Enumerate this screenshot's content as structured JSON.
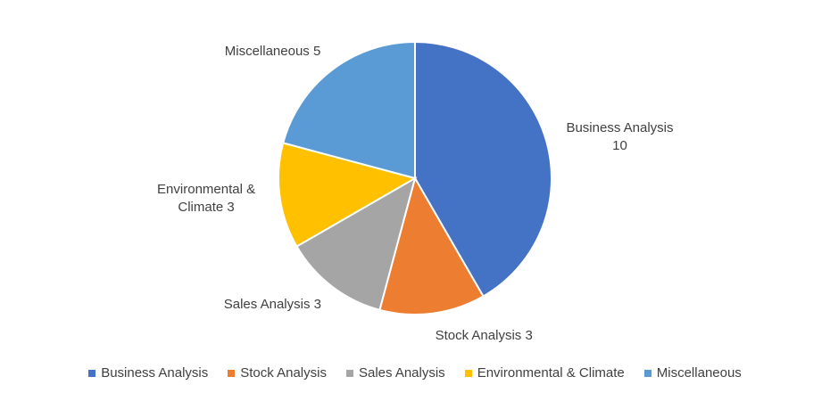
{
  "chart_data": {
    "type": "pie",
    "categories": [
      "Business Analysis",
      "Stock Analysis",
      "Sales Analysis",
      "Environmental & Climate",
      "Miscellaneous"
    ],
    "values": [
      10,
      3,
      3,
      3,
      5
    ],
    "colors": [
      "#4472c4",
      "#ed7d31",
      "#a5a5a5",
      "#ffc000",
      "#5b9bd5"
    ],
    "legend": "bottom"
  }
}
